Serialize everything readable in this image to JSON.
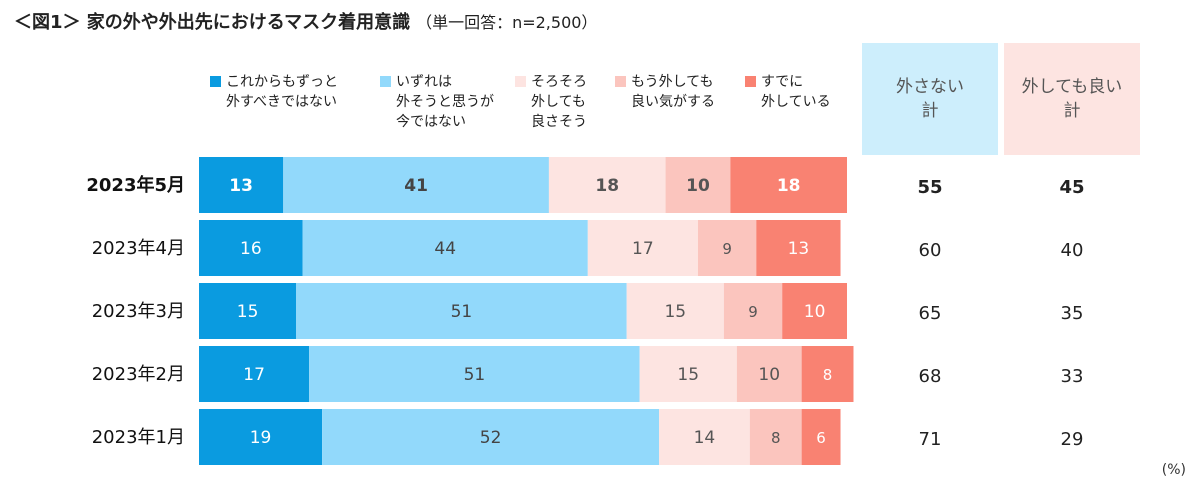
{
  "title": "＜図1＞ 家の外や外出先におけるマスク着用意識",
  "subtitle": "（単一回答：n=2,500）",
  "unit": "(%)",
  "chart_data": {
    "type": "bar",
    "orientation": "horizontal",
    "stacked": true,
    "categories": [
      "2023年5月",
      "2023年4月",
      "2023年3月",
      "2023年2月",
      "2023年1月"
    ],
    "highlight_category": "2023年5月",
    "series": [
      {
        "name": "これからもずっと\n外すべきではない",
        "color": "#0a9be0",
        "values": [
          13,
          16,
          15,
          17,
          19
        ]
      },
      {
        "name": "いずれは\n外そうと思うが\n今ではない",
        "color": "#92d9fb",
        "values": [
          41,
          44,
          51,
          51,
          52
        ]
      },
      {
        "name": "そろそろ\n外しても\n良さそう",
        "color": "#fde4e1",
        "values": [
          18,
          17,
          15,
          15,
          14
        ]
      },
      {
        "name": "もう外しても\n良い気がする",
        "color": "#fbc5be",
        "values": [
          10,
          9,
          9,
          10,
          8
        ]
      },
      {
        "name": "すでに\n外している",
        "color": "#f98272",
        "values": [
          18,
          13,
          10,
          8,
          6
        ]
      }
    ],
    "summary_columns": [
      {
        "name": "外さない\n計",
        "color": "#cdeefc",
        "values": [
          55,
          60,
          65,
          68,
          71
        ]
      },
      {
        "name": "外しても良い\n計",
        "color": "#fde4e1",
        "values": [
          45,
          40,
          35,
          33,
          29
        ]
      }
    ],
    "xlim": [
      0,
      100
    ],
    "legend": "top",
    "grid": false
  }
}
